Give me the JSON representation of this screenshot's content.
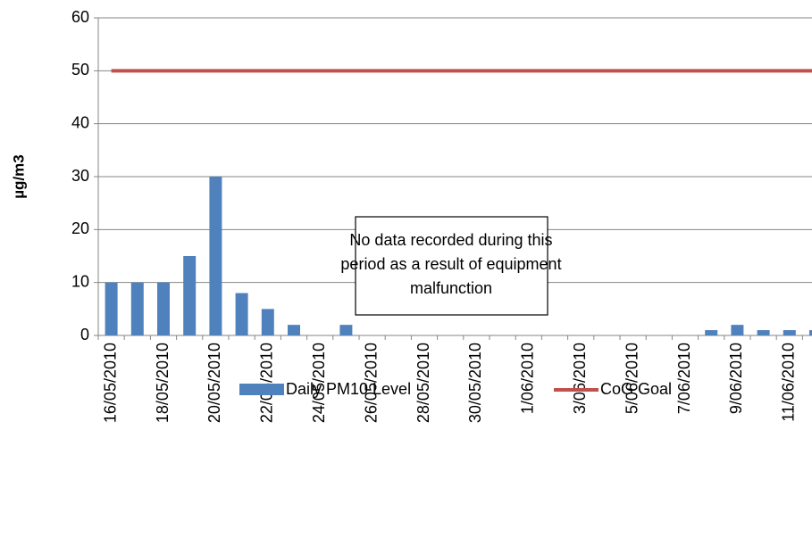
{
  "chart_data": {
    "type": "bar",
    "y_label": "µg/m3",
    "categories": [
      "16/05/2010",
      null,
      "18/05/2010",
      null,
      "20/05/2010",
      null,
      "22/05/2010",
      null,
      "24/05/2010",
      null,
      "26/05/2010",
      null,
      "28/05/2010",
      null,
      "30/05/2010",
      null,
      "1/06/2010",
      null,
      "3/06/2010",
      null,
      "5/06/2010",
      null,
      "7/06/2010",
      null,
      "9/06/2010",
      null,
      "11/06/2010",
      null
    ],
    "series": [
      {
        "name": "Daily PM10 Level",
        "type": "bar",
        "color": "#4f81bd",
        "values": [
          10,
          10,
          10,
          15,
          30,
          8,
          5,
          2,
          null,
          2,
          null,
          null,
          null,
          null,
          null,
          null,
          null,
          null,
          null,
          null,
          null,
          null,
          null,
          1,
          2,
          1,
          1,
          1
        ]
      },
      {
        "name": "CoG Goal",
        "type": "line",
        "color": "#c0504d",
        "values": [
          50,
          50,
          50,
          50,
          50,
          50,
          50,
          50,
          50,
          50,
          50,
          50,
          50,
          50,
          50,
          50,
          50,
          50,
          50,
          50,
          50,
          50,
          50,
          50,
          50,
          50,
          50,
          50
        ]
      }
    ],
    "annotation": [
      "No data recorded during this",
      "period as a result of equipment",
      "malfunction"
    ],
    "ylim": [
      0,
      60
    ],
    "yticks": [
      0,
      10,
      20,
      30,
      40,
      50,
      60
    ],
    "grid": true,
    "legend": "bottom"
  }
}
